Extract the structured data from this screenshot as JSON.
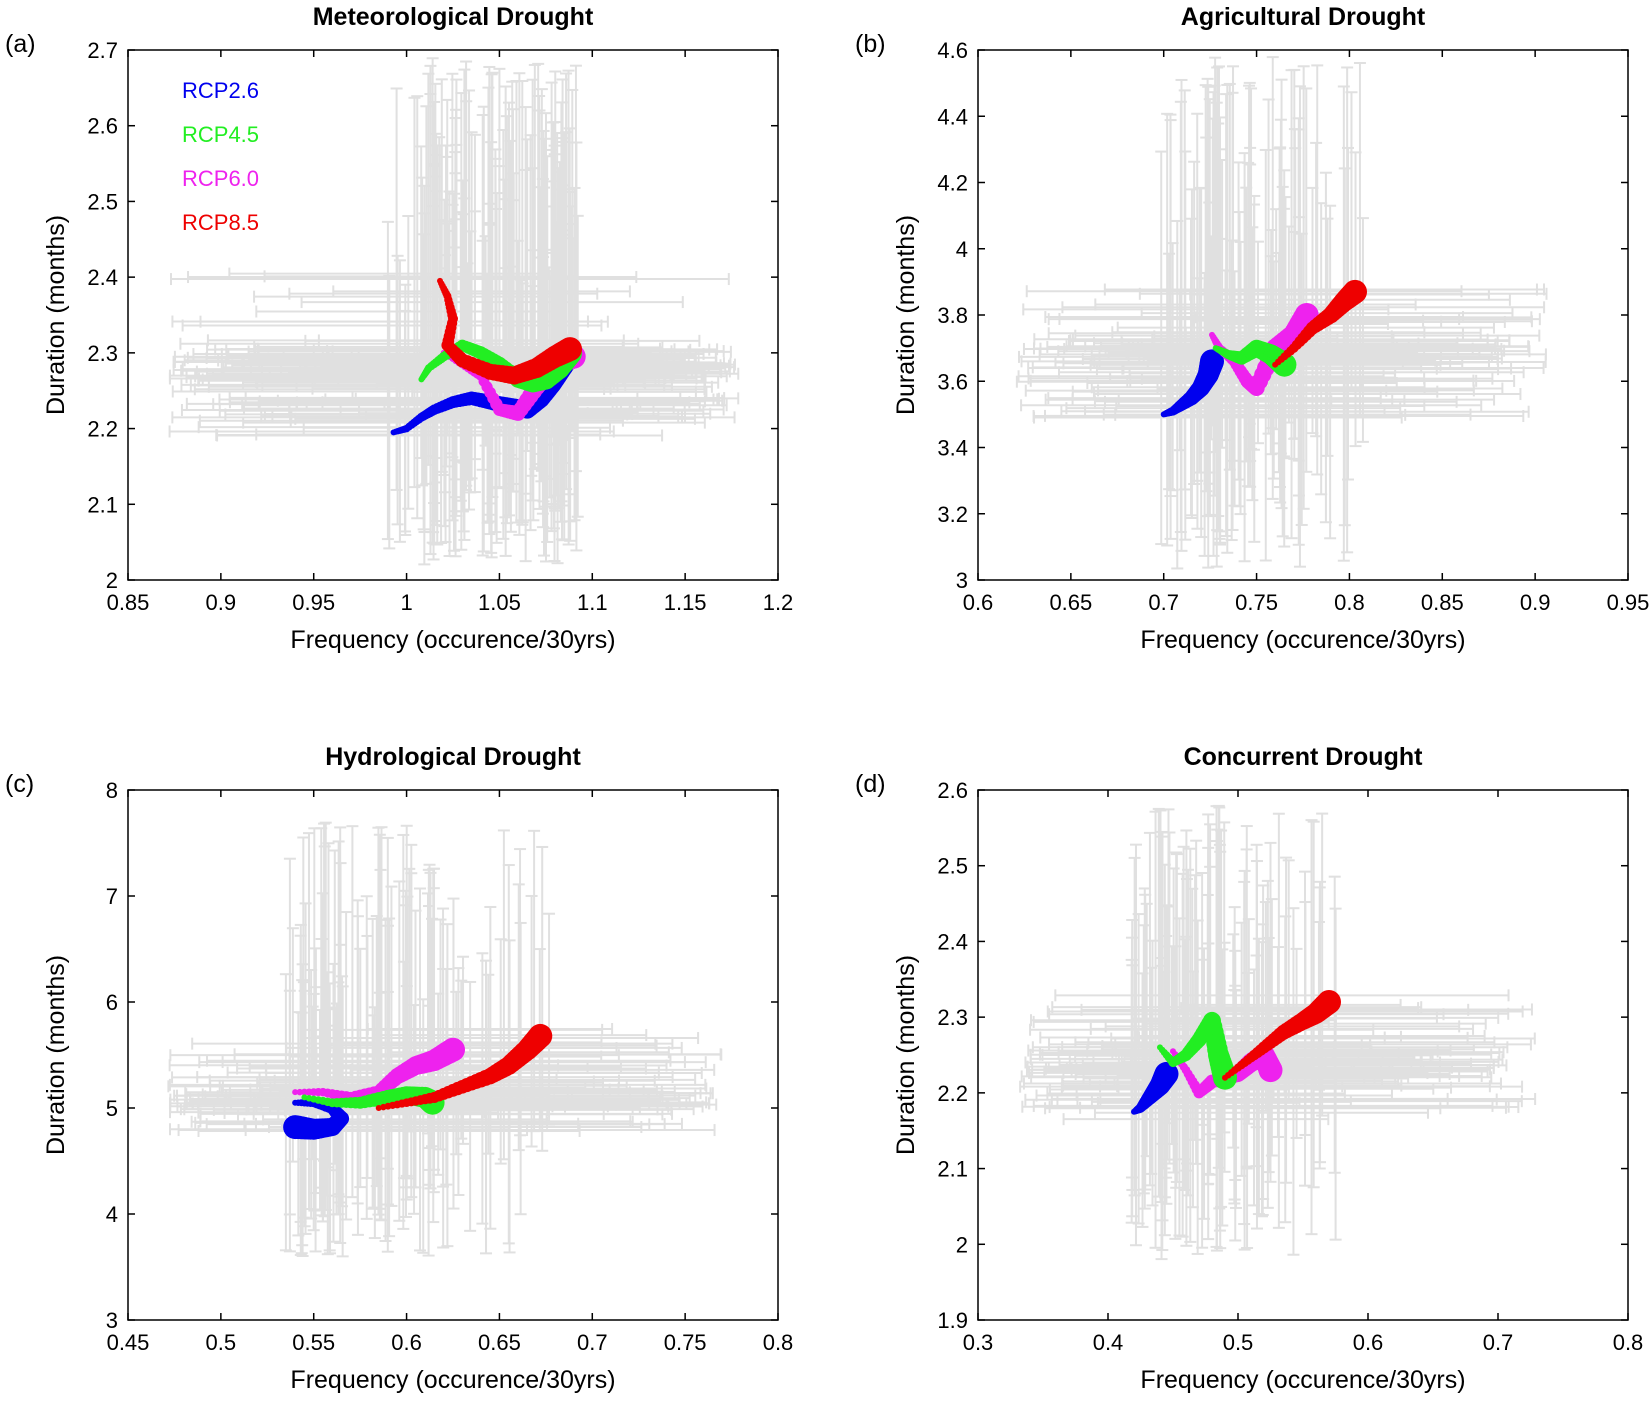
{
  "colors": {
    "RCP2.6": "#0000ee",
    "RCP4.5": "#22ee22",
    "RCP6.0": "#ee22ee",
    "RCP8.5": "#ee0000",
    "errorbar": "#e0e0e0"
  },
  "chart_data": [
    {
      "type": "scatter",
      "panel": "(a)",
      "title": "Meteorological Drought",
      "xlabel": "Frequency (occurence/30yrs)",
      "ylabel": "Duration (months)",
      "xlim": [
        0.85,
        1.2
      ],
      "ylim": [
        2.0,
        2.7
      ],
      "xticks": [
        0.85,
        0.9,
        0.95,
        1.0,
        1.05,
        1.1,
        1.15,
        1.2
      ],
      "xtick_labels": [
        "0.85",
        "0.9",
        "0.95",
        "1",
        "1.05",
        "1.1",
        "1.15",
        "1.2"
      ],
      "yticks": [
        2.0,
        2.1,
        2.2,
        2.3,
        2.4,
        2.5,
        2.6,
        2.7
      ],
      "ytick_labels": [
        "2",
        "2.1",
        "2.2",
        "2.3",
        "2.4",
        "2.5",
        "2.6",
        "2.7"
      ],
      "grid": false,
      "legend": {
        "placement": "top-left",
        "entries": [
          "RCP2.6",
          "RCP4.5",
          "RCP6.0",
          "RCP8.5"
        ]
      },
      "errorbar_envelope": {
        "x": [
          0.87,
          1.18
        ],
        "y": [
          2.02,
          2.69
        ]
      },
      "series": [
        {
          "name": "RCP2.6",
          "points": [
            [
              0.993,
              2.195
            ],
            [
              1.0,
              2.2
            ],
            [
              1.008,
              2.215
            ],
            [
              1.015,
              2.225
            ],
            [
              1.025,
              2.235
            ],
            [
              1.035,
              2.24
            ],
            [
              1.045,
              2.235
            ],
            [
              1.055,
              2.23
            ],
            [
              1.065,
              2.225
            ],
            [
              1.072,
              2.24
            ],
            [
              1.078,
              2.26
            ],
            [
              1.083,
              2.28
            ],
            [
              1.088,
              2.3
            ]
          ]
        },
        {
          "name": "RCP4.5",
          "points": [
            [
              1.008,
              2.265
            ],
            [
              1.012,
              2.28
            ],
            [
              1.02,
              2.295
            ],
            [
              1.03,
              2.31
            ],
            [
              1.04,
              2.3
            ],
            [
              1.05,
              2.285
            ],
            [
              1.06,
              2.265
            ],
            [
              1.068,
              2.26
            ],
            [
              1.075,
              2.265
            ],
            [
              1.082,
              2.28
            ],
            [
              1.088,
              2.3
            ]
          ]
        },
        {
          "name": "RCP6.0",
          "points": [
            [
              1.02,
              2.3
            ],
            [
              1.03,
              2.285
            ],
            [
              1.04,
              2.27
            ],
            [
              1.05,
              2.225
            ],
            [
              1.06,
              2.22
            ],
            [
              1.07,
              2.255
            ],
            [
              1.078,
              2.28
            ],
            [
              1.085,
              2.29
            ],
            [
              1.09,
              2.295
            ]
          ]
        },
        {
          "name": "RCP8.5",
          "points": [
            [
              1.018,
              2.395
            ],
            [
              1.022,
              2.375
            ],
            [
              1.025,
              2.345
            ],
            [
              1.022,
              2.31
            ],
            [
              1.03,
              2.29
            ],
            [
              1.045,
              2.275
            ],
            [
              1.058,
              2.27
            ],
            [
              1.07,
              2.28
            ],
            [
              1.08,
              2.295
            ],
            [
              1.088,
              2.305
            ]
          ]
        }
      ]
    },
    {
      "type": "scatter",
      "panel": "(b)",
      "title": "Agricultural Drought",
      "xlabel": "Frequency (occurence/30yrs)",
      "ylabel": "Duration (months)",
      "xlim": [
        0.6,
        0.95
      ],
      "ylim": [
        3.0,
        4.6
      ],
      "xticks": [
        0.6,
        0.65,
        0.7,
        0.75,
        0.8,
        0.85,
        0.9,
        0.95
      ],
      "xtick_labels": [
        "0.6",
        "0.65",
        "0.7",
        "0.75",
        "0.8",
        "0.85",
        "0.9",
        "0.95"
      ],
      "yticks": [
        3.0,
        3.2,
        3.4,
        3.6,
        3.8,
        4.0,
        4.2,
        4.4,
        4.6
      ],
      "ytick_labels": [
        "3",
        "3.2",
        "3.4",
        "3.6",
        "3.8",
        "4",
        "4.2",
        "4.4",
        "4.6"
      ],
      "grid": false,
      "errorbar_envelope": {
        "x": [
          0.62,
          0.91
        ],
        "y": [
          3.03,
          4.58
        ]
      },
      "series": [
        {
          "name": "RCP2.6",
          "points": [
            [
              0.7,
              3.5
            ],
            [
              0.705,
              3.51
            ],
            [
              0.71,
              3.53
            ],
            [
              0.715,
              3.55
            ],
            [
              0.72,
              3.58
            ],
            [
              0.724,
              3.62
            ],
            [
              0.726,
              3.66
            ]
          ]
        },
        {
          "name": "RCP4.5",
          "points": [
            [
              0.728,
              3.7
            ],
            [
              0.735,
              3.68
            ],
            [
              0.742,
              3.67
            ],
            [
              0.75,
              3.7
            ],
            [
              0.758,
              3.68
            ],
            [
              0.765,
              3.65
            ]
          ]
        },
        {
          "name": "RCP6.0",
          "points": [
            [
              0.726,
              3.74
            ],
            [
              0.73,
              3.7
            ],
            [
              0.738,
              3.66
            ],
            [
              0.745,
              3.6
            ],
            [
              0.75,
              3.58
            ],
            [
              0.76,
              3.7
            ],
            [
              0.77,
              3.74
            ],
            [
              0.777,
              3.8
            ]
          ]
        },
        {
          "name": "RCP8.5",
          "points": [
            [
              0.76,
              3.65
            ],
            [
              0.77,
              3.7
            ],
            [
              0.78,
              3.76
            ],
            [
              0.79,
              3.8
            ],
            [
              0.797,
              3.84
            ],
            [
              0.803,
              3.87
            ]
          ]
        }
      ]
    },
    {
      "type": "scatter",
      "panel": "(c)",
      "title": "Hydrological Drought",
      "xlabel": "Frequency (occurence/30yrs)",
      "ylabel": "Duration (months)",
      "xlim": [
        0.45,
        0.8
      ],
      "ylim": [
        3.0,
        8.0
      ],
      "xticks": [
        0.45,
        0.5,
        0.55,
        0.6,
        0.65,
        0.7,
        0.75,
        0.8
      ],
      "xtick_labels": [
        "0.45",
        "0.5",
        "0.55",
        "0.6",
        "0.65",
        "0.7",
        "0.75",
        "0.8"
      ],
      "yticks": [
        3,
        4,
        5,
        6,
        7,
        8
      ],
      "ytick_labels": [
        "3",
        "4",
        "5",
        "6",
        "7",
        "8"
      ],
      "grid": false,
      "errorbar_envelope": {
        "x": [
          0.47,
          0.77
        ],
        "y": [
          3.6,
          7.7
        ]
      },
      "series": [
        {
          "name": "RCP2.6",
          "points": [
            [
              0.54,
              5.05
            ],
            [
              0.55,
              5.05
            ],
            [
              0.56,
              5.0
            ],
            [
              0.565,
              4.9
            ],
            [
              0.56,
              4.82
            ],
            [
              0.55,
              4.8
            ],
            [
              0.54,
              4.82
            ]
          ]
        },
        {
          "name": "RCP4.5",
          "points": [
            [
              0.545,
              5.1
            ],
            [
              0.56,
              5.05
            ],
            [
              0.575,
              5.05
            ],
            [
              0.59,
              5.1
            ],
            [
              0.6,
              5.12
            ],
            [
              0.61,
              5.1
            ],
            [
              0.614,
              5.05
            ]
          ]
        },
        {
          "name": "RCP6.0",
          "points": [
            [
              0.54,
              5.15
            ],
            [
              0.555,
              5.15
            ],
            [
              0.57,
              5.1
            ],
            [
              0.585,
              5.15
            ],
            [
              0.595,
              5.3
            ],
            [
              0.605,
              5.4
            ],
            [
              0.615,
              5.45
            ],
            [
              0.625,
              5.55
            ]
          ]
        },
        {
          "name": "RCP8.5",
          "points": [
            [
              0.585,
              5.0
            ],
            [
              0.6,
              5.05
            ],
            [
              0.615,
              5.1
            ],
            [
              0.63,
              5.2
            ],
            [
              0.645,
              5.3
            ],
            [
              0.655,
              5.4
            ],
            [
              0.665,
              5.55
            ],
            [
              0.672,
              5.68
            ]
          ]
        }
      ]
    },
    {
      "type": "scatter",
      "panel": "(d)",
      "title": "Concurrent Drought",
      "xlabel": "Frequency (occurence/30yrs)",
      "ylabel": "Duration (months)",
      "xlim": [
        0.3,
        0.8
      ],
      "ylim": [
        1.9,
        2.6
      ],
      "xticks": [
        0.3,
        0.4,
        0.5,
        0.6,
        0.7,
        0.8
      ],
      "xtick_labels": [
        "0.3",
        "0.4",
        "0.5",
        "0.6",
        "0.7",
        "0.8"
      ],
      "yticks": [
        1.9,
        2.0,
        2.1,
        2.2,
        2.3,
        2.4,
        2.5,
        2.6
      ],
      "ytick_labels": [
        "1.9",
        "2",
        "2.1",
        "2.2",
        "2.3",
        "2.4",
        "2.5",
        "2.6"
      ],
      "grid": false,
      "errorbar_envelope": {
        "x": [
          0.33,
          0.73
        ],
        "y": [
          1.98,
          2.58
        ]
      },
      "series": [
        {
          "name": "RCP2.6",
          "points": [
            [
              0.42,
              2.175
            ],
            [
              0.425,
              2.18
            ],
            [
              0.43,
              2.19
            ],
            [
              0.435,
              2.2
            ],
            [
              0.44,
              2.21
            ],
            [
              0.445,
              2.225
            ]
          ]
        },
        {
          "name": "RCP4.5",
          "points": [
            [
              0.44,
              2.26
            ],
            [
              0.45,
              2.24
            ],
            [
              0.46,
              2.25
            ],
            [
              0.47,
              2.27
            ],
            [
              0.48,
              2.295
            ],
            [
              0.485,
              2.25
            ],
            [
              0.49,
              2.22
            ]
          ]
        },
        {
          "name": "RCP6.0",
          "points": [
            [
              0.45,
              2.255
            ],
            [
              0.46,
              2.23
            ],
            [
              0.47,
              2.2
            ],
            [
              0.48,
              2.215
            ],
            [
              0.5,
              2.225
            ],
            [
              0.51,
              2.24
            ],
            [
              0.52,
              2.25
            ],
            [
              0.525,
              2.23
            ]
          ]
        },
        {
          "name": "RCP8.5",
          "points": [
            [
              0.49,
              2.22
            ],
            [
              0.505,
              2.24
            ],
            [
              0.52,
              2.26
            ],
            [
              0.535,
              2.28
            ],
            [
              0.55,
              2.295
            ],
            [
              0.56,
              2.305
            ],
            [
              0.57,
              2.32
            ]
          ]
        }
      ]
    }
  ]
}
